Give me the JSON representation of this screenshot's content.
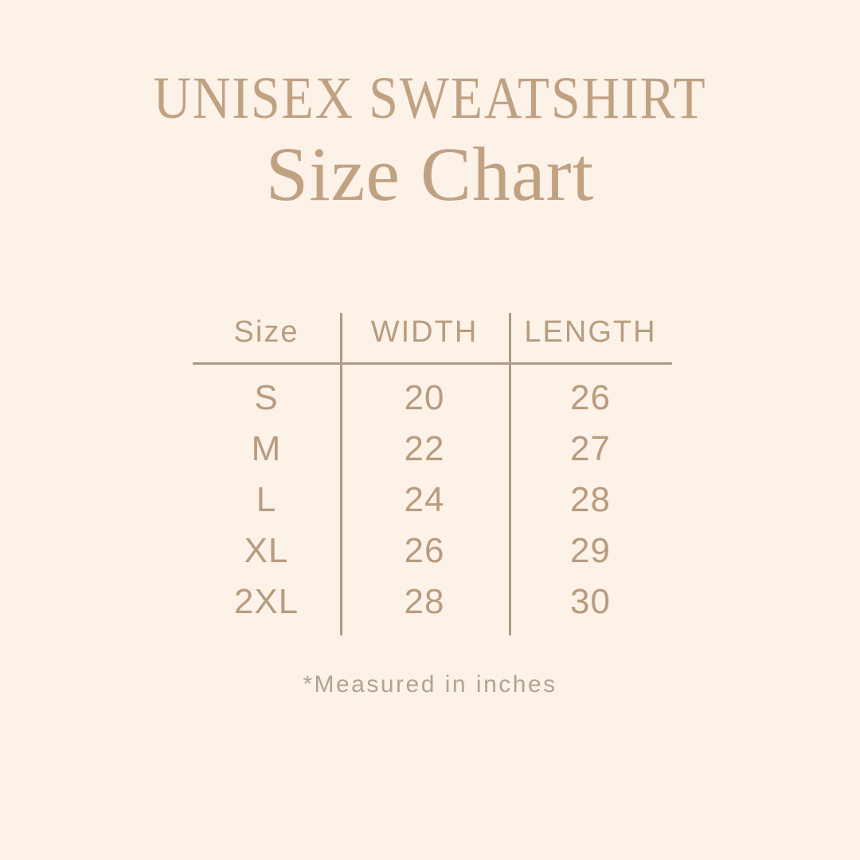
{
  "header": {
    "title": "UNISEX SWEATSHIRT",
    "subtitle": "Size Chart"
  },
  "table": {
    "columns": [
      "Size",
      "WIDTH",
      "LENGTH"
    ],
    "rows": [
      {
        "size": "S",
        "width": "20",
        "length": "26"
      },
      {
        "size": "M",
        "width": "22",
        "length": "27"
      },
      {
        "size": "L",
        "width": "24",
        "length": "28"
      },
      {
        "size": "XL",
        "width": "26",
        "length": "29"
      },
      {
        "size": "2XL",
        "width": "28",
        "length": "30"
      }
    ]
  },
  "footnote": "*Measured in inches",
  "colors": {
    "bg": "#fcf2e8",
    "title": "#c0a283",
    "table-text": "#b89c7f",
    "line": "#ae9a83",
    "footnote": "#b3a193"
  },
  "chart_data": {
    "type": "table",
    "title": "UNISEX SWEATSHIRT Size Chart",
    "columns": [
      "Size",
      "WIDTH",
      "LENGTH"
    ],
    "rows": [
      [
        "S",
        20,
        26
      ],
      [
        "M",
        22,
        27
      ],
      [
        "L",
        24,
        28
      ],
      [
        "XL",
        26,
        29
      ],
      [
        "2XL",
        28,
        30
      ]
    ],
    "units": "inches",
    "note": "*Measured in inches"
  }
}
